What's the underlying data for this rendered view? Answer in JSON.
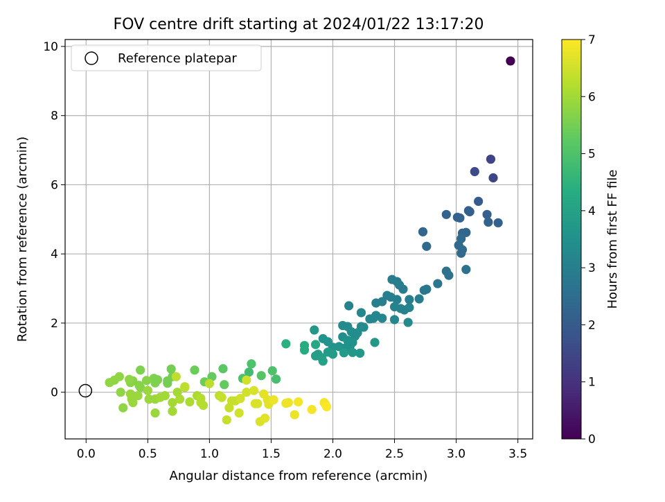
{
  "chart_data": {
    "type": "scatter",
    "title": "FOV centre drift starting at 2024/01/22 13:17:20",
    "xlabel": "Angular distance from reference (arcmin)",
    "ylabel": "Rotation from reference (arcmin)",
    "xlim": [
      -0.17,
      3.62
    ],
    "ylim": [
      -1.35,
      10.2
    ],
    "xticks": [
      "0.0",
      "0.5",
      "1.0",
      "1.5",
      "2.0",
      "2.5",
      "3.0",
      "3.5"
    ],
    "yticks": [
      "0",
      "2",
      "4",
      "6",
      "8",
      "10"
    ],
    "grid": true,
    "legend": {
      "position": "top-left",
      "entries": [
        "Reference platepar"
      ]
    },
    "reference_point": {
      "x": 0.0,
      "y": 0.0,
      "label": "Reference platepar"
    },
    "colorbar": {
      "label": "Hours from first FF file",
      "range": [
        0,
        7
      ],
      "ticks": [
        "0",
        "1",
        "2",
        "3",
        "4",
        "5",
        "6",
        "7"
      ],
      "colormap": "viridis"
    },
    "points": [
      [
        3.44,
        9.58,
        0.0
      ],
      [
        3.28,
        6.74,
        1.4
      ],
      [
        3.3,
        6.2,
        1.5
      ],
      [
        3.15,
        6.38,
        1.6
      ],
      [
        3.18,
        5.52,
        2.0
      ],
      [
        3.1,
        5.25,
        2.1
      ],
      [
        3.11,
        5.22,
        2.1
      ],
      [
        3.25,
        5.14,
        2.1
      ],
      [
        2.92,
        5.14,
        2.2
      ],
      [
        3.01,
        5.06,
        2.2
      ],
      [
        3.03,
        5.04,
        2.2
      ],
      [
        3.26,
        4.92,
        2.2
      ],
      [
        3.34,
        4.9,
        2.2
      ],
      [
        3.08,
        4.62,
        2.3
      ],
      [
        3.05,
        4.6,
        2.3
      ],
      [
        2.73,
        4.64,
        2.3
      ],
      [
        3.04,
        4.44,
        2.4
      ],
      [
        3.02,
        4.25,
        2.4
      ],
      [
        3.05,
        4.12,
        2.4
      ],
      [
        3.04,
        4.02,
        2.4
      ],
      [
        2.76,
        4.22,
        2.4
      ],
      [
        3.08,
        3.55,
        2.6
      ],
      [
        2.92,
        3.5,
        2.6
      ],
      [
        2.94,
        3.38,
        2.6
      ],
      [
        2.85,
        3.14,
        2.7
      ],
      [
        2.74,
        2.95,
        2.8
      ],
      [
        2.76,
        2.98,
        2.8
      ],
      [
        2.7,
        2.7,
        2.9
      ],
      [
        2.48,
        3.26,
        2.9
      ],
      [
        2.52,
        3.2,
        2.9
      ],
      [
        2.54,
        3.1,
        2.9
      ],
      [
        2.57,
        2.98,
        2.9
      ],
      [
        2.44,
        2.8,
        3.0
      ],
      [
        2.47,
        2.75,
        3.0
      ],
      [
        2.52,
        2.68,
        3.0
      ],
      [
        2.62,
        2.68,
        3.0
      ],
      [
        2.35,
        2.58,
        3.0
      ],
      [
        2.4,
        2.62,
        3.0
      ],
      [
        2.13,
        2.5,
        3.1
      ],
      [
        2.5,
        2.47,
        3.1
      ],
      [
        2.55,
        2.42,
        3.1
      ],
      [
        2.58,
        2.38,
        3.1
      ],
      [
        2.62,
        2.45,
        3.1
      ],
      [
        2.23,
        2.3,
        3.2
      ],
      [
        2.35,
        2.22,
        3.2
      ],
      [
        2.33,
        2.14,
        3.2
      ],
      [
        2.3,
        2.12,
        3.2
      ],
      [
        2.4,
        2.14,
        3.2
      ],
      [
        2.5,
        2.1,
        3.2
      ],
      [
        2.61,
        2.02,
        3.3
      ],
      [
        2.23,
        1.9,
        3.3
      ],
      [
        2.25,
        1.88,
        3.3
      ],
      [
        2.08,
        1.93,
        3.3
      ],
      [
        2.12,
        1.9,
        3.3
      ],
      [
        2.15,
        1.75,
        3.4
      ],
      [
        2.2,
        1.72,
        3.4
      ],
      [
        2.18,
        1.62,
        3.4
      ],
      [
        2.08,
        1.6,
        3.4
      ],
      [
        2.12,
        1.5,
        3.5
      ],
      [
        2.16,
        1.44,
        3.5
      ],
      [
        2.14,
        1.34,
        3.5
      ],
      [
        2.1,
        1.28,
        3.5
      ],
      [
        2.05,
        1.32,
        3.6
      ],
      [
        2.0,
        1.3,
        3.6
      ],
      [
        1.96,
        1.46,
        3.6
      ],
      [
        1.92,
        1.55,
        3.6
      ],
      [
        1.85,
        1.8,
        3.7
      ],
      [
        2.34,
        1.44,
        3.7
      ],
      [
        2.16,
        1.15,
        3.7
      ],
      [
        2.22,
        1.13,
        3.7
      ],
      [
        2.09,
        1.14,
        3.8
      ],
      [
        1.96,
        1.16,
        3.8
      ],
      [
        2.0,
        1.1,
        3.8
      ],
      [
        1.86,
        1.05,
        3.9
      ],
      [
        1.88,
        1.1,
        3.9
      ],
      [
        1.91,
        1.0,
        3.9
      ],
      [
        1.92,
        0.9,
        4.0
      ],
      [
        1.86,
        1.38,
        4.2
      ],
      [
        1.77,
        1.35,
        4.3
      ],
      [
        1.77,
        1.22,
        4.3
      ],
      [
        1.62,
        1.4,
        4.4
      ],
      [
        1.32,
        0.58,
        4.8
      ],
      [
        1.54,
        0.38,
        4.9
      ],
      [
        1.34,
        0.82,
        5.0
      ],
      [
        1.51,
        0.62,
        5.0
      ],
      [
        1.27,
        0.4,
        5.0
      ],
      [
        1.42,
        0.48,
        5.1
      ],
      [
        1.11,
        0.68,
        5.2
      ],
      [
        1.12,
        0.22,
        5.3
      ],
      [
        1.02,
        0.45,
        5.3
      ],
      [
        0.96,
        0.3,
        5.4
      ],
      [
        0.88,
        0.64,
        5.4
      ],
      [
        0.69,
        0.67,
        5.5
      ],
      [
        0.66,
        0.26,
        5.5
      ],
      [
        0.66,
        0.33,
        5.5
      ],
      [
        0.7,
        0.45,
        5.5
      ],
      [
        0.58,
        0.36,
        5.6
      ],
      [
        0.55,
        0.4,
        5.6
      ],
      [
        0.56,
        0.27,
        5.6
      ],
      [
        0.44,
        0.64,
        5.6
      ],
      [
        0.49,
        0.34,
        5.7
      ],
      [
        0.44,
        0.14,
        5.7
      ],
      [
        0.43,
        0.2,
        5.7
      ],
      [
        0.38,
        0.33,
        5.7
      ],
      [
        0.36,
        0.28,
        5.7
      ],
      [
        0.35,
        0.37,
        5.8
      ],
      [
        0.27,
        0.45,
        5.8
      ],
      [
        0.23,
        0.35,
        5.8
      ],
      [
        0.19,
        0.28,
        5.8
      ],
      [
        0.28,
        0.0,
        5.8
      ],
      [
        0.3,
        -0.45,
        5.8
      ],
      [
        0.37,
        -0.2,
        5.9
      ],
      [
        0.38,
        -0.3,
        5.9
      ],
      [
        0.36,
        -0.05,
        5.9
      ],
      [
        0.42,
        -0.1,
        5.9
      ],
      [
        0.5,
        0.05,
        5.9
      ],
      [
        0.51,
        -0.2,
        5.9
      ],
      [
        0.56,
        -0.2,
        5.9
      ],
      [
        0.56,
        -0.6,
        5.9
      ],
      [
        0.6,
        -0.15,
        6.0
      ],
      [
        0.64,
        -0.1,
        6.0
      ],
      [
        0.7,
        -0.3,
        6.0
      ],
      [
        0.7,
        -0.55,
        6.0
      ],
      [
        0.74,
        0.0,
        6.0
      ],
      [
        0.76,
        -0.2,
        6.1
      ],
      [
        0.8,
        0.14,
        6.1
      ],
      [
        0.84,
        -0.28,
        6.1
      ],
      [
        0.9,
        -0.1,
        6.1
      ],
      [
        0.93,
        -0.3,
        6.2
      ],
      [
        0.93,
        -0.18,
        6.2
      ],
      [
        0.95,
        -0.38,
        6.2
      ],
      [
        0.73,
        0.45,
        6.3
      ],
      [
        0.8,
        0.16,
        6.3
      ],
      [
        1.0,
        0.25,
        6.3
      ],
      [
        1.08,
        -0.1,
        6.3
      ],
      [
        1.1,
        -0.15,
        6.4
      ],
      [
        1.14,
        -0.8,
        6.4
      ],
      [
        1.16,
        -0.45,
        6.4
      ],
      [
        1.18,
        -0.25,
        6.4
      ],
      [
        1.21,
        -0.25,
        6.4
      ],
      [
        1.24,
        -0.6,
        6.5
      ],
      [
        1.25,
        -0.18,
        6.5
      ],
      [
        1.3,
        0.0,
        6.5
      ],
      [
        1.3,
        0.35,
        6.5
      ],
      [
        1.36,
        0.05,
        6.6
      ],
      [
        1.37,
        -0.33,
        6.6
      ],
      [
        1.39,
        -0.33,
        6.6
      ],
      [
        1.41,
        -0.85,
        6.6
      ],
      [
        1.44,
        -0.05,
        6.7
      ],
      [
        1.45,
        -0.75,
        6.7
      ],
      [
        1.47,
        -0.22,
        6.7
      ],
      [
        1.48,
        -0.35,
        6.7
      ],
      [
        1.52,
        -0.22,
        6.8
      ],
      [
        1.62,
        -0.32,
        6.8
      ],
      [
        1.64,
        -0.3,
        6.8
      ],
      [
        1.69,
        -0.65,
        6.8
      ],
      [
        1.72,
        -0.28,
        6.9
      ],
      [
        1.83,
        -0.5,
        6.9
      ],
      [
        1.93,
        -0.3,
        6.9
      ],
      [
        1.94,
        -0.35,
        6.9
      ],
      [
        1.95,
        -0.42,
        7.0
      ]
    ]
  }
}
